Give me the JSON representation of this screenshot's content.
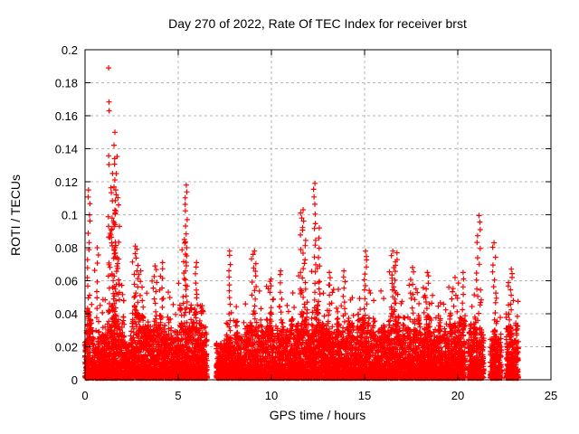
{
  "page": {
    "background": "#ffffff"
  },
  "chart_data": {
    "type": "scatter",
    "title": "Day 270 of 2022, Rate Of TEC Index for receiver brst",
    "xlabel": "GPS time / hours",
    "ylabel": "ROTI / TECUs",
    "xlim": [
      0,
      25
    ],
    "ylim": [
      0,
      0.2
    ],
    "xticks": [
      0,
      5,
      10,
      15,
      20,
      25
    ],
    "xtick_labels": [
      "0",
      "5",
      "10",
      "15",
      "20",
      "25"
    ],
    "yticks": [
      0,
      0.02,
      0.04,
      0.06,
      0.08,
      0.1,
      0.12,
      0.14,
      0.16,
      0.18,
      0.2
    ],
    "ytick_labels": [
      "0",
      "0.02",
      "0.04",
      "0.06",
      "0.08",
      "0.1",
      "0.12",
      "0.14",
      "0.16",
      "0.18",
      "0.2"
    ],
    "grid": {
      "style": "dashed",
      "color": "#b4b4b4"
    },
    "frame_color": "#000000",
    "legend": "none",
    "marker": {
      "shape": "plus",
      "color": "#ff0000",
      "half_size": 3,
      "stroke_width": 1.2
    },
    "series": [
      {
        "name": "ROTI",
        "representation": "procedural-scatter",
        "seed": 270,
        "floor": 0.001,
        "step_hours": 0.012,
        "points_per_step": 5,
        "tail_probability": 0.08,
        "dense_segments": [
          [
            0.0,
            0.35,
            0.048,
            0.06
          ],
          [
            0.35,
            1.05,
            0.034,
            0.05
          ],
          [
            1.05,
            1.55,
            0.045,
            0.055
          ],
          [
            1.55,
            2.1,
            0.05,
            0.06
          ],
          [
            2.1,
            2.45,
            0.028,
            0.04
          ],
          [
            2.45,
            3.15,
            0.053,
            0.066
          ],
          [
            3.15,
            3.55,
            0.042,
            0.055
          ],
          [
            3.55,
            4.3,
            0.046,
            0.065
          ],
          [
            4.3,
            4.9,
            0.04,
            0.055
          ],
          [
            4.9,
            5.55,
            0.048,
            0.065
          ],
          [
            5.55,
            6.25,
            0.05,
            0.065
          ],
          [
            6.25,
            6.55,
            0.035,
            0.045
          ],
          [
            7.05,
            7.55,
            0.028,
            0.04
          ],
          [
            7.55,
            7.95,
            0.036,
            0.05
          ],
          [
            7.95,
            8.75,
            0.036,
            0.048
          ],
          [
            8.75,
            9.3,
            0.042,
            0.055
          ],
          [
            9.3,
            10.35,
            0.045,
            0.06
          ],
          [
            10.35,
            11.35,
            0.04,
            0.055
          ],
          [
            11.35,
            12.05,
            0.05,
            0.065
          ],
          [
            12.05,
            12.7,
            0.05,
            0.068
          ],
          [
            12.7,
            13.45,
            0.044,
            0.06
          ],
          [
            13.45,
            14.25,
            0.04,
            0.058
          ],
          [
            14.25,
            15.3,
            0.045,
            0.06
          ],
          [
            15.3,
            16.3,
            0.04,
            0.055
          ],
          [
            16.3,
            16.9,
            0.05,
            0.068
          ],
          [
            16.9,
            18.2,
            0.042,
            0.058
          ],
          [
            18.2,
            19.4,
            0.04,
            0.052
          ],
          [
            19.4,
            20.4,
            0.044,
            0.06
          ],
          [
            20.55,
            21.4,
            0.04,
            0.055
          ],
          [
            21.75,
            22.35,
            0.036,
            0.05
          ],
          [
            22.6,
            23.25,
            0.04,
            0.055
          ]
        ],
        "gaps": [
          [
            6.55,
            7.05
          ],
          [
            20.4,
            20.55
          ],
          [
            21.4,
            21.75
          ],
          [
            22.35,
            22.6
          ],
          [
            23.25,
            25.0
          ]
        ],
        "spikes": [
          [
            0.2,
            0.115,
            0.18,
            16
          ],
          [
            0.62,
            0.08,
            0.25,
            10
          ],
          [
            1.27,
            0.189,
            0.05,
            6
          ],
          [
            1.3,
            0.163,
            0.06,
            4
          ],
          [
            1.62,
            0.15,
            0.2,
            14
          ],
          [
            1.55,
            0.134,
            0.45,
            22
          ],
          [
            1.6,
            0.115,
            0.55,
            26
          ],
          [
            1.55,
            0.095,
            0.6,
            26
          ],
          [
            2.7,
            0.081,
            0.35,
            20
          ],
          [
            3.0,
            0.066,
            0.25,
            10
          ],
          [
            3.75,
            0.069,
            0.25,
            12
          ],
          [
            4.15,
            0.071,
            0.12,
            8
          ],
          [
            5.42,
            0.118,
            0.12,
            20
          ],
          [
            5.3,
            0.085,
            0.3,
            16
          ],
          [
            5.97,
            0.071,
            0.15,
            10
          ],
          [
            7.75,
            0.078,
            0.1,
            12
          ],
          [
            9.05,
            0.078,
            0.3,
            18
          ],
          [
            10.0,
            0.061,
            0.2,
            8
          ],
          [
            10.5,
            0.066,
            0.12,
            9
          ],
          [
            11.7,
            0.103,
            0.3,
            26
          ],
          [
            12.32,
            0.119,
            0.12,
            18
          ],
          [
            12.55,
            0.092,
            0.12,
            10
          ],
          [
            13.1,
            0.065,
            0.12,
            8
          ],
          [
            13.9,
            0.066,
            0.18,
            10
          ],
          [
            15.05,
            0.078,
            0.15,
            14
          ],
          [
            16.55,
            0.078,
            0.4,
            26
          ],
          [
            17.55,
            0.068,
            0.18,
            10
          ],
          [
            18.35,
            0.065,
            0.18,
            10
          ],
          [
            19.8,
            0.062,
            0.5,
            10
          ],
          [
            20.3,
            0.065,
            0.1,
            8
          ],
          [
            21.12,
            0.0995,
            0.25,
            16
          ],
          [
            21.95,
            0.083,
            0.18,
            12
          ],
          [
            22.85,
            0.067,
            0.3,
            14
          ]
        ]
      }
    ]
  }
}
